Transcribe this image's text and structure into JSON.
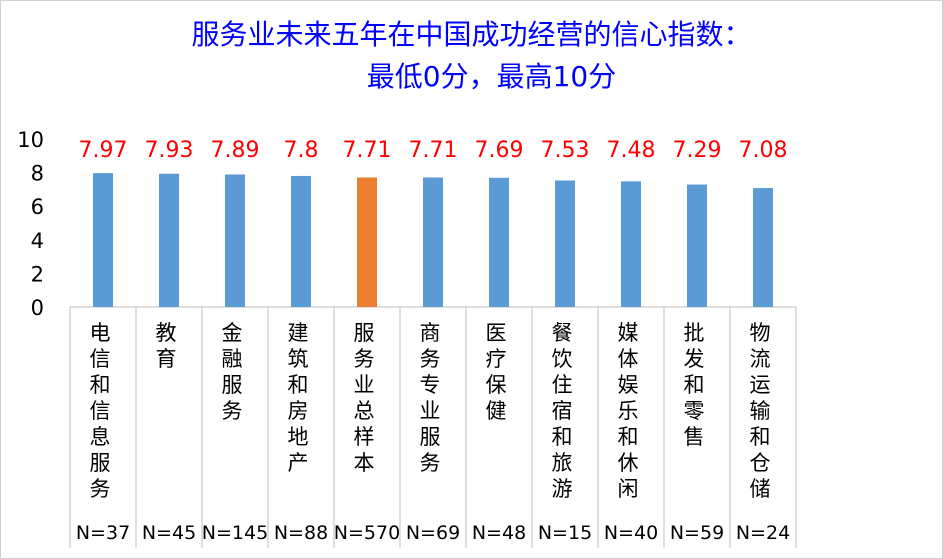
{
  "chart_data": {
    "type": "bar",
    "title_line1": "服务业未来五年在中国成功经营的信心指数：",
    "title_line2": "最低0分，最高10分",
    "categories": [
      "电信和信息服务",
      "教育",
      "金融服务",
      "建筑和房地产",
      "服务业总样本",
      "商务专业服务",
      "医疗保健",
      "餐饮住宿和旅游",
      "媒体娱乐和休闲",
      "批发和零售",
      "物流运输和仓储"
    ],
    "sample_sizes": [
      "N=37",
      "N=45",
      "N=145",
      "N=88",
      "N=570",
      "N=69",
      "N=48",
      "N=15",
      "N=40",
      "N=59",
      "N=24"
    ],
    "values": [
      7.97,
      7.93,
      7.89,
      7.8,
      7.71,
      7.71,
      7.69,
      7.53,
      7.48,
      7.29,
      7.08
    ],
    "data_labels": [
      "7.97",
      "7.93",
      "7.89",
      "7.8",
      "7.71",
      "7.71",
      "7.69",
      "7.53",
      "7.48",
      "7.29",
      "7.08"
    ],
    "y_ticks": [
      "0",
      "2",
      "4",
      "6",
      "8",
      "10"
    ],
    "ylim": [
      0,
      10
    ],
    "grid": false,
    "legend": "none",
    "colors": {
      "bar": "#5b9bd5",
      "highlight_bar": "#ed7d31",
      "highlight_index": 4,
      "data_label": "#ff0000",
      "title": "#0000ff",
      "axis": "#bfbfbf"
    }
  }
}
